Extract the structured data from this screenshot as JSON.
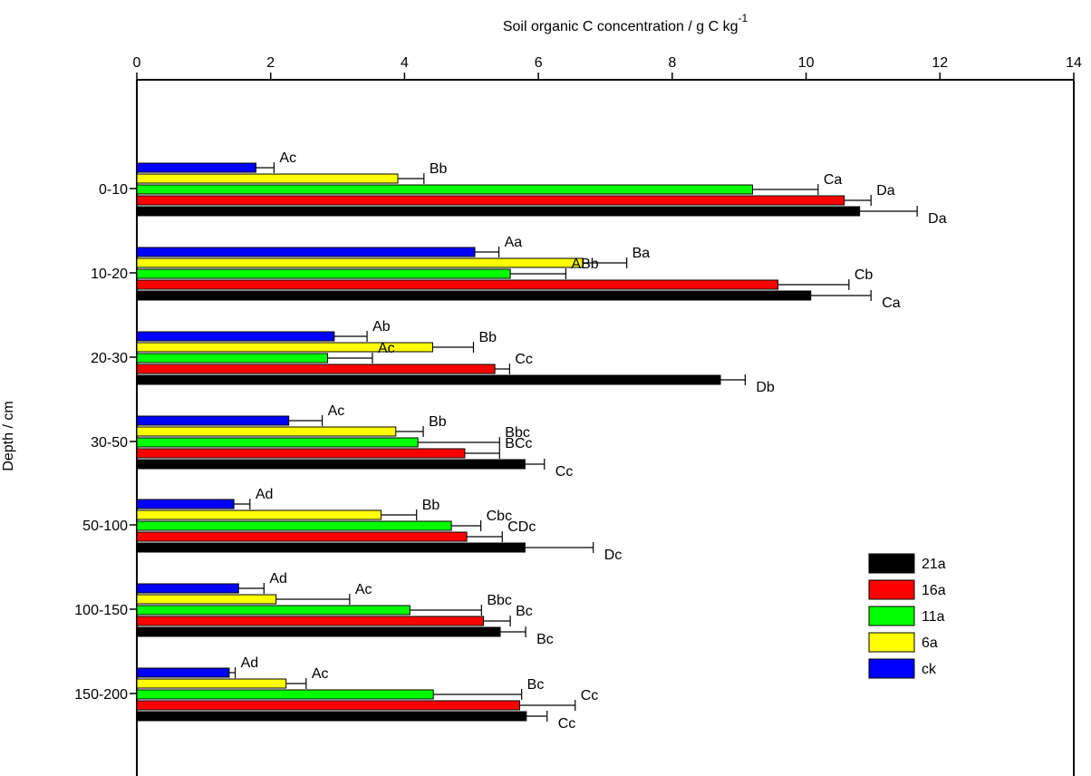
{
  "chart_data": {
    "type": "bar",
    "orientation": "horizontal",
    "xlabel": "Soil organic C concentration / g C kg",
    "xlabel_superscript": "-1",
    "ylabel": "Depth / cm",
    "xlim": [
      0,
      14
    ],
    "xticks": [
      0,
      2,
      4,
      6,
      8,
      10,
      12,
      14
    ],
    "x_axis_position": "top",
    "grid": false,
    "legend_position": "right",
    "categories": [
      "0-10",
      "10-20",
      "20-30",
      "30-50",
      "50-100",
      "100-150",
      "150-200"
    ],
    "series": [
      {
        "name": "ck",
        "color": "#0000ff",
        "values": [
          1.78,
          5.05,
          2.95,
          2.27,
          1.45,
          1.52,
          1.38
        ],
        "errors": [
          0.27,
          0.36,
          0.49,
          0.5,
          0.24,
          0.38,
          0.09
        ],
        "labels": [
          "Ac",
          "Aa",
          "Ab",
          "Ac",
          "Ad",
          "Ad",
          "Ad"
        ]
      },
      {
        "name": "6a",
        "color": "#ffff00",
        "values": [
          3.9,
          6.67,
          4.42,
          3.87,
          3.65,
          2.08,
          2.23
        ],
        "errors": [
          0.39,
          0.65,
          0.61,
          0.41,
          0.53,
          1.1,
          0.3
        ],
        "labels": [
          "Bb",
          "Ba",
          "Bb",
          "Bb",
          "Bb",
          "Ac",
          "Ac"
        ]
      },
      {
        "name": "11a",
        "color": "#00ff00",
        "values": [
          9.2,
          5.58,
          2.85,
          4.2,
          4.7,
          4.08,
          4.43
        ],
        "errors": [
          0.98,
          0.83,
          0.67,
          1.22,
          0.44,
          1.07,
          1.32
        ],
        "labels": [
          "Ca",
          "ABb",
          "Ac",
          "Bbc",
          "Cbc",
          "Bbc",
          "Bc"
        ]
      },
      {
        "name": "16a",
        "color": "#ff0000",
        "values": [
          10.57,
          9.58,
          5.35,
          4.9,
          4.93,
          5.18,
          5.72
        ],
        "errors": [
          0.4,
          1.06,
          0.22,
          0.52,
          0.53,
          0.4,
          0.83
        ],
        "labels": [
          "Da",
          "Cb",
          "Cc",
          "BCc",
          "CDc",
          "Bc",
          "Cc"
        ]
      },
      {
        "name": "21a",
        "color": "#000000",
        "values": [
          10.8,
          10.07,
          8.72,
          5.8,
          5.8,
          5.43,
          5.82
        ],
        "errors": [
          0.86,
          0.9,
          0.37,
          0.29,
          1.02,
          0.38,
          0.31
        ],
        "labels": [
          "Da",
          "Ca",
          "Db",
          "Cc",
          "Dc",
          "Bc",
          "Cc"
        ]
      }
    ],
    "legend_order": [
      "21a",
      "16a",
      "11a",
      "6a",
      "ck"
    ]
  }
}
